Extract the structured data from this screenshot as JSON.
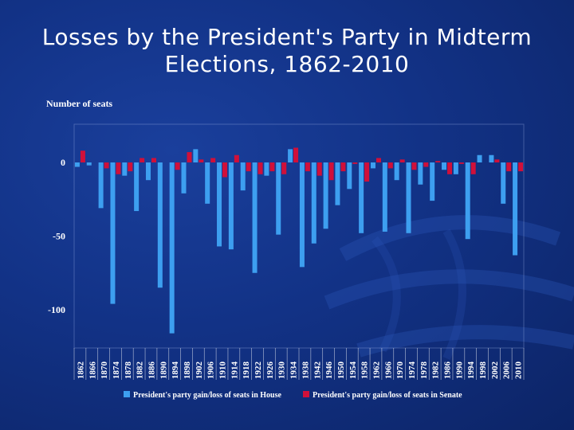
{
  "slide": {
    "title_line1": "Losses by the President's Party in Midterm",
    "title_line2": "Elections, 1862-2010"
  },
  "colors": {
    "house": "#3d9ff0",
    "senate": "#d0103a",
    "background": "#123286"
  },
  "chart_data": {
    "type": "bar",
    "ylabel": "Number of seats",
    "yticks": [
      0,
      -50,
      -100
    ],
    "ylim": [
      -120,
      12
    ],
    "grid": false,
    "legend_position": "bottom",
    "categories": [
      "1862",
      "1866",
      "1870",
      "1874",
      "1878",
      "1882",
      "1886",
      "1890",
      "1894",
      "1898",
      "1902",
      "1906",
      "1910",
      "1914",
      "1918",
      "1922",
      "1926",
      "1930",
      "1934",
      "1938",
      "1942",
      "1946",
      "1950",
      "1954",
      "1958",
      "1962",
      "1966",
      "1970",
      "1974",
      "1978",
      "1982",
      "1986",
      "1990",
      "1994",
      "1998",
      "2002",
      "2006",
      "2010"
    ],
    "series": [
      {
        "name": "President's party gain/loss of seats in House",
        "color": "#3d9ff0",
        "values": [
          -3,
          -2,
          -31,
          -96,
          -9,
          -33,
          -12,
          -85,
          -116,
          -21,
          9,
          -28,
          -57,
          -59,
          -19,
          -75,
          -9,
          -49,
          9,
          -71,
          -55,
          -45,
          -29,
          -18,
          -48,
          -4,
          -47,
          -12,
          -48,
          -15,
          -26,
          -5,
          -8,
          -52,
          5,
          5,
          -28,
          -63
        ]
      },
      {
        "name": "President's party gain/loss of seats in Senate",
        "color": "#d0103a",
        "values": [
          8,
          0,
          -4,
          -8,
          -6,
          3,
          3,
          0,
          -5,
          7,
          2,
          3,
          -10,
          5,
          -6,
          -8,
          -6,
          -8,
          10,
          -6,
          -9,
          -12,
          -6,
          -1,
          -13,
          3,
          -4,
          2,
          -5,
          -3,
          1,
          -8,
          -1,
          -8,
          0,
          2,
          -6,
          -6
        ]
      }
    ]
  }
}
